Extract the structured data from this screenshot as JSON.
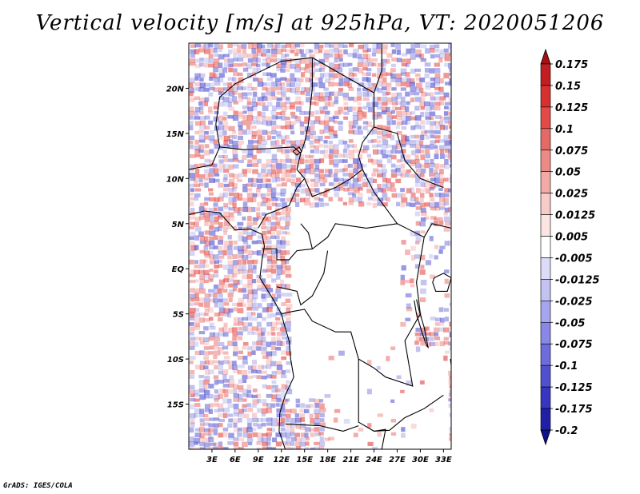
{
  "title": "Vertical velocity [m/s] at 925hPa, VT: 2020051206",
  "footer": "GrADS: IGES/COLA",
  "map": {
    "lon_range": [
      0,
      34
    ],
    "lat_range": [
      -20,
      25
    ],
    "lon_ticks": [
      {
        "value": 3,
        "label": "3E"
      },
      {
        "value": 6,
        "label": "6E"
      },
      {
        "value": 9,
        "label": "9E"
      },
      {
        "value": 12,
        "label": "12E"
      },
      {
        "value": 15,
        "label": "15E"
      },
      {
        "value": 18,
        "label": "18E"
      },
      {
        "value": 21,
        "label": "21E"
      },
      {
        "value": 24,
        "label": "24E"
      },
      {
        "value": 27,
        "label": "27E"
      },
      {
        "value": 30,
        "label": "30E"
      },
      {
        "value": 33,
        "label": "33E"
      }
    ],
    "lat_ticks": [
      {
        "value": 20,
        "label": "20N"
      },
      {
        "value": 15,
        "label": "15N"
      },
      {
        "value": 10,
        "label": "10N"
      },
      {
        "value": 5,
        "label": "5N"
      },
      {
        "value": 0,
        "label": "EQ"
      },
      {
        "value": -5,
        "label": "5S"
      },
      {
        "value": -10,
        "label": "10S"
      },
      {
        "value": -15,
        "label": "15S"
      }
    ],
    "field": "vertical velocity",
    "units": "m/s",
    "level": "925hPa"
  },
  "colorbar": {
    "orientation": "vertical",
    "placement": "right",
    "colors": [
      "#a50f15",
      "#c31d22",
      "#d7302f",
      "#e34a45",
      "#e56a66",
      "#ec8a86",
      "#f3aaa6",
      "#f7cbc8",
      "#fbe4e2",
      "#ffffff",
      "#dcdcf8",
      "#c2c2f3",
      "#a6a6ee",
      "#8888e6",
      "#6c6cdc",
      "#5050d0",
      "#3636c2",
      "#1f1fa8",
      "#10108a"
    ],
    "labels": [
      "0.175",
      "0.15",
      "0.125",
      "0.1",
      "0.075",
      "0.05",
      "0.025",
      "0.0125",
      "0.005",
      "-0.005",
      "-0.0125",
      "-0.025",
      "-0.05",
      "-0.075",
      "-0.1",
      "-0.125",
      "-0.175",
      "-0.2"
    ]
  },
  "colors": {
    "ascent": "#e34a45",
    "descent": "#5050d0",
    "coast": "#000000"
  }
}
